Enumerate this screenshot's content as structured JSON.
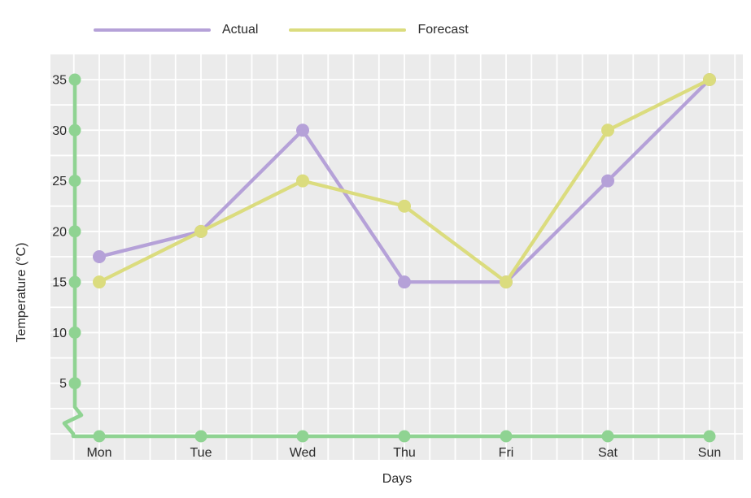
{
  "chart_data": {
    "type": "line",
    "title": "",
    "categories": [
      "Mon",
      "Tue",
      "Wed",
      "Thu",
      "Fri",
      "Sat",
      "Sun"
    ],
    "series": [
      {
        "name": "Actual",
        "color": "#b5a1d8",
        "values": [
          17.5,
          20,
          30,
          15,
          15,
          25,
          35
        ]
      },
      {
        "name": "Forecast",
        "color": "#dbdc7e",
        "values": [
          15,
          20,
          25,
          22.5,
          15,
          30,
          35
        ]
      }
    ],
    "xlabel": "Days",
    "ylabel": "Temperature (°C)",
    "yticks": [
      5,
      10,
      15,
      20,
      25,
      30,
      35
    ],
    "ylim": [
      0,
      37.5
    ],
    "grid": true,
    "legend_position": "top",
    "styles": {
      "plot_bg": "#ebebeb",
      "grid_color": "#ffffff",
      "axis_color": "#8fd392",
      "text_color": "#2b2b2b"
    }
  }
}
